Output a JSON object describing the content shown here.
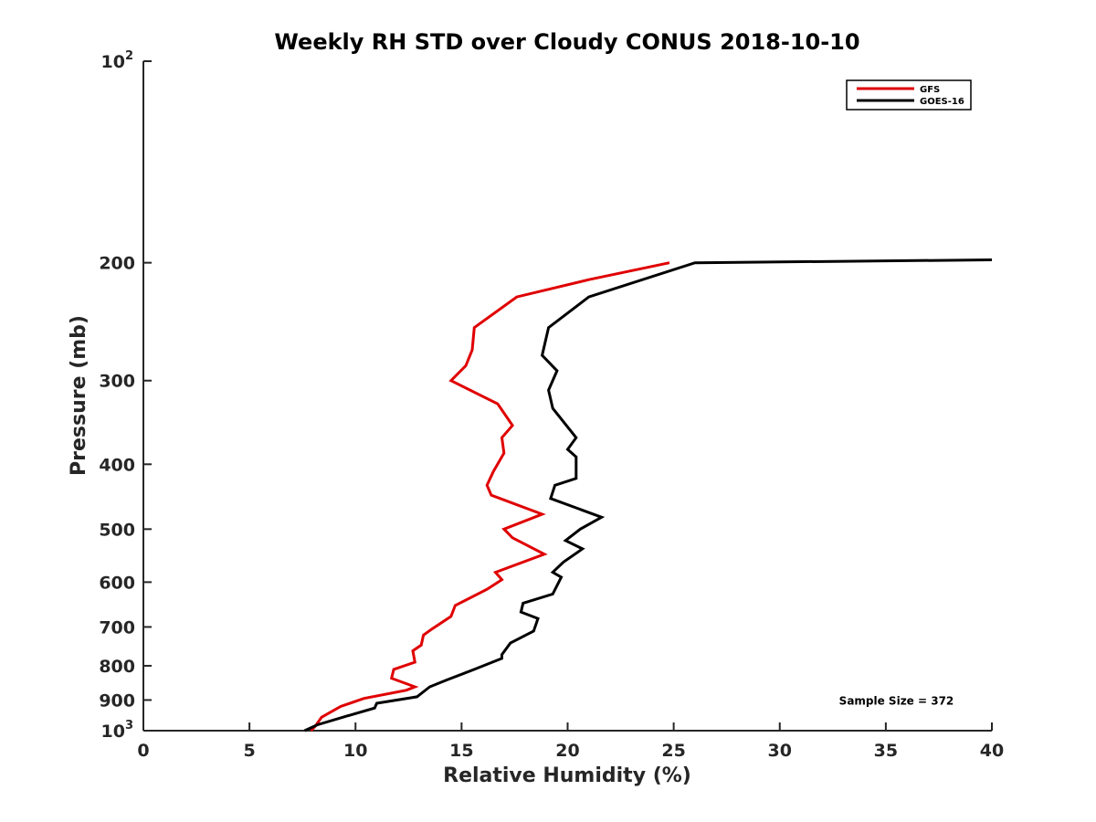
{
  "chart_data": {
    "type": "line",
    "title": "Weekly RH STD over Cloudy CONUS 2018-10-10",
    "xlabel": "Relative Humidity (%)",
    "ylabel": "Pressure (mb)",
    "xlim": [
      0,
      40
    ],
    "ylim": [
      100,
      1000
    ],
    "yscale": "log",
    "y_reversed": true,
    "x_ticks": [
      0,
      5,
      10,
      15,
      20,
      25,
      30,
      35,
      40
    ],
    "y_ticks": [
      {
        "value": 100,
        "base": "10",
        "exp": "2"
      },
      {
        "value": 200,
        "label": "200"
      },
      {
        "value": 300,
        "label": "300"
      },
      {
        "value": 400,
        "label": "400"
      },
      {
        "value": 500,
        "label": "500"
      },
      {
        "value": 600,
        "label": "600"
      },
      {
        "value": 700,
        "label": "700"
      },
      {
        "value": 800,
        "label": "800"
      },
      {
        "value": 900,
        "label": "900"
      },
      {
        "value": 1000,
        "base": "10",
        "exp": "3"
      }
    ],
    "grid": false,
    "legend_position": "top-right",
    "series": [
      {
        "name": "GFS",
        "color": "#e00000",
        "points": [
          [
            24.8,
            200
          ],
          [
            21.0,
            212
          ],
          [
            17.6,
            225
          ],
          [
            15.6,
            250
          ],
          [
            15.5,
            270
          ],
          [
            15.2,
            285
          ],
          [
            14.5,
            300
          ],
          [
            16.7,
            325
          ],
          [
            17.4,
            350
          ],
          [
            16.9,
            365
          ],
          [
            17.0,
            385
          ],
          [
            16.5,
            410
          ],
          [
            16.2,
            430
          ],
          [
            16.4,
            445
          ],
          [
            18.8,
            475
          ],
          [
            17.0,
            500
          ],
          [
            17.4,
            515
          ],
          [
            18.9,
            545
          ],
          [
            16.6,
            580
          ],
          [
            16.9,
            595
          ],
          [
            16.2,
            615
          ],
          [
            14.7,
            650
          ],
          [
            14.5,
            675
          ],
          [
            13.6,
            705
          ],
          [
            13.2,
            720
          ],
          [
            13.1,
            745
          ],
          [
            12.7,
            760
          ],
          [
            12.8,
            790
          ],
          [
            11.8,
            810
          ],
          [
            11.7,
            835
          ],
          [
            12.8,
            860
          ],
          [
            12.4,
            870
          ],
          [
            10.4,
            895
          ],
          [
            9.3,
            920
          ],
          [
            8.4,
            955
          ],
          [
            8.1,
            985
          ],
          [
            7.9,
            1000
          ]
        ]
      },
      {
        "name": "GOES-16",
        "color": "#000000",
        "points": [
          [
            40.0,
            198
          ],
          [
            26.0,
            200
          ],
          [
            21.0,
            225
          ],
          [
            19.1,
            250
          ],
          [
            18.8,
            275
          ],
          [
            19.5,
            290
          ],
          [
            19.1,
            310
          ],
          [
            19.3,
            330
          ],
          [
            20.4,
            365
          ],
          [
            20.0,
            380
          ],
          [
            20.4,
            390
          ],
          [
            20.4,
            420
          ],
          [
            19.4,
            430
          ],
          [
            19.2,
            450
          ],
          [
            21.6,
            480
          ],
          [
            20.6,
            500
          ],
          [
            19.9,
            520
          ],
          [
            20.7,
            535
          ],
          [
            19.8,
            560
          ],
          [
            19.3,
            580
          ],
          [
            19.7,
            590
          ],
          [
            19.3,
            625
          ],
          [
            17.9,
            645
          ],
          [
            17.8,
            665
          ],
          [
            18.6,
            680
          ],
          [
            18.4,
            710
          ],
          [
            17.3,
            740
          ],
          [
            16.9,
            770
          ],
          [
            16.9,
            780
          ],
          [
            15.6,
            810
          ],
          [
            14.3,
            840
          ],
          [
            13.5,
            860
          ],
          [
            12.9,
            890
          ],
          [
            11.0,
            910
          ],
          [
            10.9,
            925
          ],
          [
            9.4,
            955
          ],
          [
            8.2,
            980
          ],
          [
            7.6,
            1000
          ]
        ]
      }
    ],
    "annotations": [
      {
        "text": "Sample Size = 372",
        "x": 35.5,
        "y": 900
      }
    ]
  }
}
